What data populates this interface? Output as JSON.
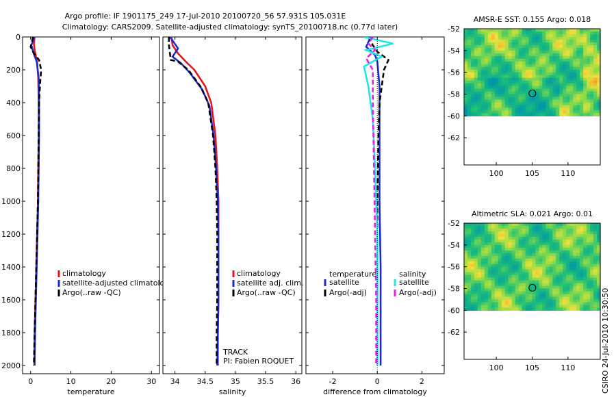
{
  "figure": {
    "title_line1": "Argo profile: IF 1901175_249 17-Jul-2010 20100720_56 57.931S 105.031E",
    "title_line2": "Climatology: CARS2009. Satellite-adjusted climatology: synTS_20100718.nc (0.77d later)",
    "stamp": "CSIRO 24-Jul-2010 10:30:50"
  },
  "colors": {
    "climatology": "#e8141e",
    "satellite": "#1a2bd6",
    "argo": "#000000",
    "satellite_salinity": "#22e6e6",
    "argo_salinity": "#e81ee8",
    "dotted": "#000000"
  },
  "chart_data": [
    {
      "id": "temperature",
      "type": "line",
      "xlabel": "temperature",
      "ylabel": "",
      "xlim": [
        -2,
        32
      ],
      "ylim": [
        2050,
        0
      ],
      "xticks": [
        0,
        10,
        20,
        30
      ],
      "yticks": [
        0,
        200,
        400,
        600,
        800,
        1000,
        1200,
        1400,
        1600,
        1800,
        2000
      ],
      "legend": {
        "position": "middle-right",
        "entries": [
          "climatology",
          "satellite-adjusted climatology",
          "Argo(..raw -QC)"
        ]
      },
      "series": [
        {
          "name": "climatology",
          "color_key": "climatology",
          "style": "solid",
          "points": [
            [
              1.0,
              0
            ],
            [
              0.8,
              40
            ],
            [
              1.0,
              80
            ],
            [
              1.6,
              150
            ],
            [
              1.9,
              250
            ],
            [
              2.0,
              400
            ],
            [
              2.0,
              600
            ],
            [
              1.9,
              800
            ],
            [
              1.8,
              1000
            ],
            [
              1.6,
              1200
            ],
            [
              1.4,
              1400
            ],
            [
              1.2,
              1600
            ],
            [
              1.0,
              1800
            ],
            [
              0.9,
              2000
            ]
          ]
        },
        {
          "name": "satellite-adjusted climatology",
          "color_key": "satellite",
          "style": "solid",
          "points": [
            [
              0.9,
              0
            ],
            [
              0.2,
              50
            ],
            [
              0.6,
              90
            ],
            [
              1.5,
              150
            ],
            [
              2.0,
              250
            ],
            [
              2.1,
              400
            ],
            [
              2.1,
              600
            ],
            [
              2.0,
              800
            ],
            [
              1.9,
              1000
            ],
            [
              1.7,
              1200
            ],
            [
              1.5,
              1400
            ],
            [
              1.3,
              1600
            ],
            [
              1.1,
              1800
            ],
            [
              1.0,
              2000
            ]
          ]
        },
        {
          "name": "Argo(..raw -QC)",
          "color_key": "argo",
          "style": "dashed",
          "points": [
            [
              0.6,
              0
            ],
            [
              0.0,
              60
            ],
            [
              0.8,
              100
            ],
            [
              2.1,
              140
            ],
            [
              2.6,
              200
            ],
            [
              2.3,
              300
            ],
            [
              2.1,
              400
            ],
            [
              2.0,
              600
            ],
            [
              1.9,
              800
            ],
            [
              1.8,
              1000
            ],
            [
              1.6,
              1200
            ],
            [
              1.4,
              1400
            ],
            [
              1.2,
              1600
            ],
            [
              1.0,
              1800
            ],
            [
              0.8,
              2000
            ]
          ]
        }
      ]
    },
    {
      "id": "salinity",
      "type": "line",
      "xlabel": "salinity",
      "ylabel": "",
      "xlim": [
        33.8,
        36.1
      ],
      "ylim": [
        2050,
        0
      ],
      "xticks": [
        34,
        34.5,
        35,
        35.5,
        36
      ],
      "xtick_labels": [
        "34",
        "34.5",
        "35",
        "35.5",
        "36"
      ],
      "legend": {
        "position": "middle-right",
        "entries": [
          "climatology",
          "satellite adj. clim.",
          "Argo(..raw -QC)"
        ]
      },
      "annotations": [
        "TRACK",
        "PI: Fabien ROQUET"
      ],
      "series": [
        {
          "name": "climatology",
          "color_key": "climatology",
          "style": "solid",
          "points": [
            [
              33.94,
              0
            ],
            [
              33.96,
              50
            ],
            [
              34.05,
              100
            ],
            [
              34.18,
              150
            ],
            [
              34.32,
              200
            ],
            [
              34.5,
              300
            ],
            [
              34.6,
              400
            ],
            [
              34.67,
              600
            ],
            [
              34.7,
              800
            ],
            [
              34.72,
              1000
            ],
            [
              34.72,
              1200
            ],
            [
              34.72,
              1400
            ],
            [
              34.72,
              1600
            ],
            [
              34.71,
              1800
            ],
            [
              34.71,
              2000
            ]
          ]
        },
        {
          "name": "satellite adj. clim.",
          "color_key": "satellite",
          "style": "solid",
          "points": [
            [
              33.92,
              0
            ],
            [
              34.05,
              70
            ],
            [
              33.96,
              120
            ],
            [
              34.1,
              160
            ],
            [
              34.25,
              220
            ],
            [
              34.45,
              320
            ],
            [
              34.57,
              420
            ],
            [
              34.64,
              600
            ],
            [
              34.68,
              800
            ],
            [
              34.71,
              1000
            ],
            [
              34.72,
              1200
            ],
            [
              34.72,
              1400
            ],
            [
              34.72,
              1600
            ],
            [
              34.71,
              1800
            ],
            [
              34.7,
              2000
            ]
          ]
        },
        {
          "name": "Argo(..raw -QC)",
          "color_key": "argo",
          "style": "dashed",
          "points": [
            [
              33.9,
              0
            ],
            [
              33.9,
              50
            ],
            [
              33.92,
              110
            ],
            [
              33.93,
              140
            ],
            [
              34.05,
              150
            ],
            [
              34.22,
              200
            ],
            [
              34.42,
              300
            ],
            [
              34.55,
              400
            ],
            [
              34.63,
              600
            ],
            [
              34.67,
              800
            ],
            [
              34.69,
              1000
            ],
            [
              34.7,
              1200
            ],
            [
              34.7,
              1400
            ],
            [
              34.7,
              1600
            ],
            [
              34.69,
              1800
            ],
            [
              34.69,
              2000
            ]
          ]
        }
      ]
    },
    {
      "id": "difference",
      "type": "line",
      "xlabel": "difference from climatology",
      "ylabel": "",
      "xlim": [
        -3.2,
        3.0
      ],
      "ylim": [
        2050,
        0
      ],
      "xticks": [
        -2,
        0,
        2
      ],
      "legend": {
        "position": "middle",
        "groups": [
          "temperature",
          "salinity"
        ],
        "entries": [
          "satellite",
          "Argo(-adj)",
          "satellite",
          "Argo(-adj)"
        ]
      },
      "series": [
        {
          "name": "temperature satellite",
          "color_key": "satellite",
          "style": "solid",
          "points": [
            [
              -0.3,
              0
            ],
            [
              -0.5,
              60
            ],
            [
              -0.1,
              110
            ],
            [
              0.0,
              150
            ],
            [
              0.1,
              300
            ],
            [
              0.1,
              600
            ],
            [
              0.1,
              1000
            ],
            [
              0.15,
              1400
            ],
            [
              0.15,
              1800
            ],
            [
              0.15,
              2000
            ]
          ]
        },
        {
          "name": "temperature Argo(-adj)",
          "color_key": "argo",
          "style": "dashed",
          "points": [
            [
              -0.4,
              0
            ],
            [
              -0.2,
              50
            ],
            [
              0.0,
              90
            ],
            [
              0.5,
              140
            ],
            [
              0.3,
              200
            ],
            [
              0.2,
              300
            ],
            [
              0.1,
              400
            ],
            [
              0.05,
              600
            ],
            [
              0.0,
              1000
            ],
            [
              0.0,
              1400
            ],
            [
              0.0,
              1800
            ],
            [
              0.0,
              2000
            ]
          ]
        },
        {
          "name": "salinity satellite",
          "color_key": "satellite_salinity",
          "style": "solid",
          "points": [
            [
              -0.6,
              0
            ],
            [
              0.7,
              40
            ],
            [
              -0.5,
              80
            ],
            [
              0.2,
              120
            ],
            [
              -0.6,
              180
            ],
            [
              -0.4,
              300
            ],
            [
              -0.2,
              500
            ],
            [
              -0.1,
              800
            ],
            [
              0.0,
              1200
            ],
            [
              0.0,
              1600
            ],
            [
              0.0,
              2000
            ]
          ]
        },
        {
          "name": "salinity Argo(-adj)",
          "color_key": "argo_salinity",
          "style": "dashed",
          "points": [
            [
              -0.2,
              0
            ],
            [
              -0.4,
              40
            ],
            [
              -0.1,
              80
            ],
            [
              -0.5,
              130
            ],
            [
              -0.2,
              200
            ],
            [
              -0.2,
              400
            ],
            [
              -0.15,
              800
            ],
            [
              -0.1,
              1200
            ],
            [
              -0.05,
              1600
            ],
            [
              -0.05,
              2000
            ]
          ]
        }
      ]
    },
    {
      "id": "amsre_sst",
      "type": "heatmap",
      "title": "AMSR-E SST: 0.155  Argo: 0.018",
      "xlim": [
        95.5,
        114.5
      ],
      "ylim": [
        -64.5,
        -52
      ],
      "xticks": [
        100,
        105,
        110
      ],
      "yticks": [
        -52,
        -54,
        -56,
        -58,
        -60,
        -62
      ],
      "data_lat_min": -60,
      "marker": {
        "lon": 105.031,
        "lat": -57.931
      }
    },
    {
      "id": "altimetric_sla",
      "type": "heatmap",
      "title": "Altimetric SLA: 0.021  Argo: 0.01",
      "xlim": [
        95.5,
        114.5
      ],
      "ylim": [
        -64.5,
        -52
      ],
      "xticks": [
        100,
        105,
        110
      ],
      "yticks": [
        -52,
        -54,
        -56,
        -58,
        -60,
        -62
      ],
      "data_lat_min": -60,
      "marker": {
        "lon": 105.031,
        "lat": -57.931
      }
    }
  ]
}
